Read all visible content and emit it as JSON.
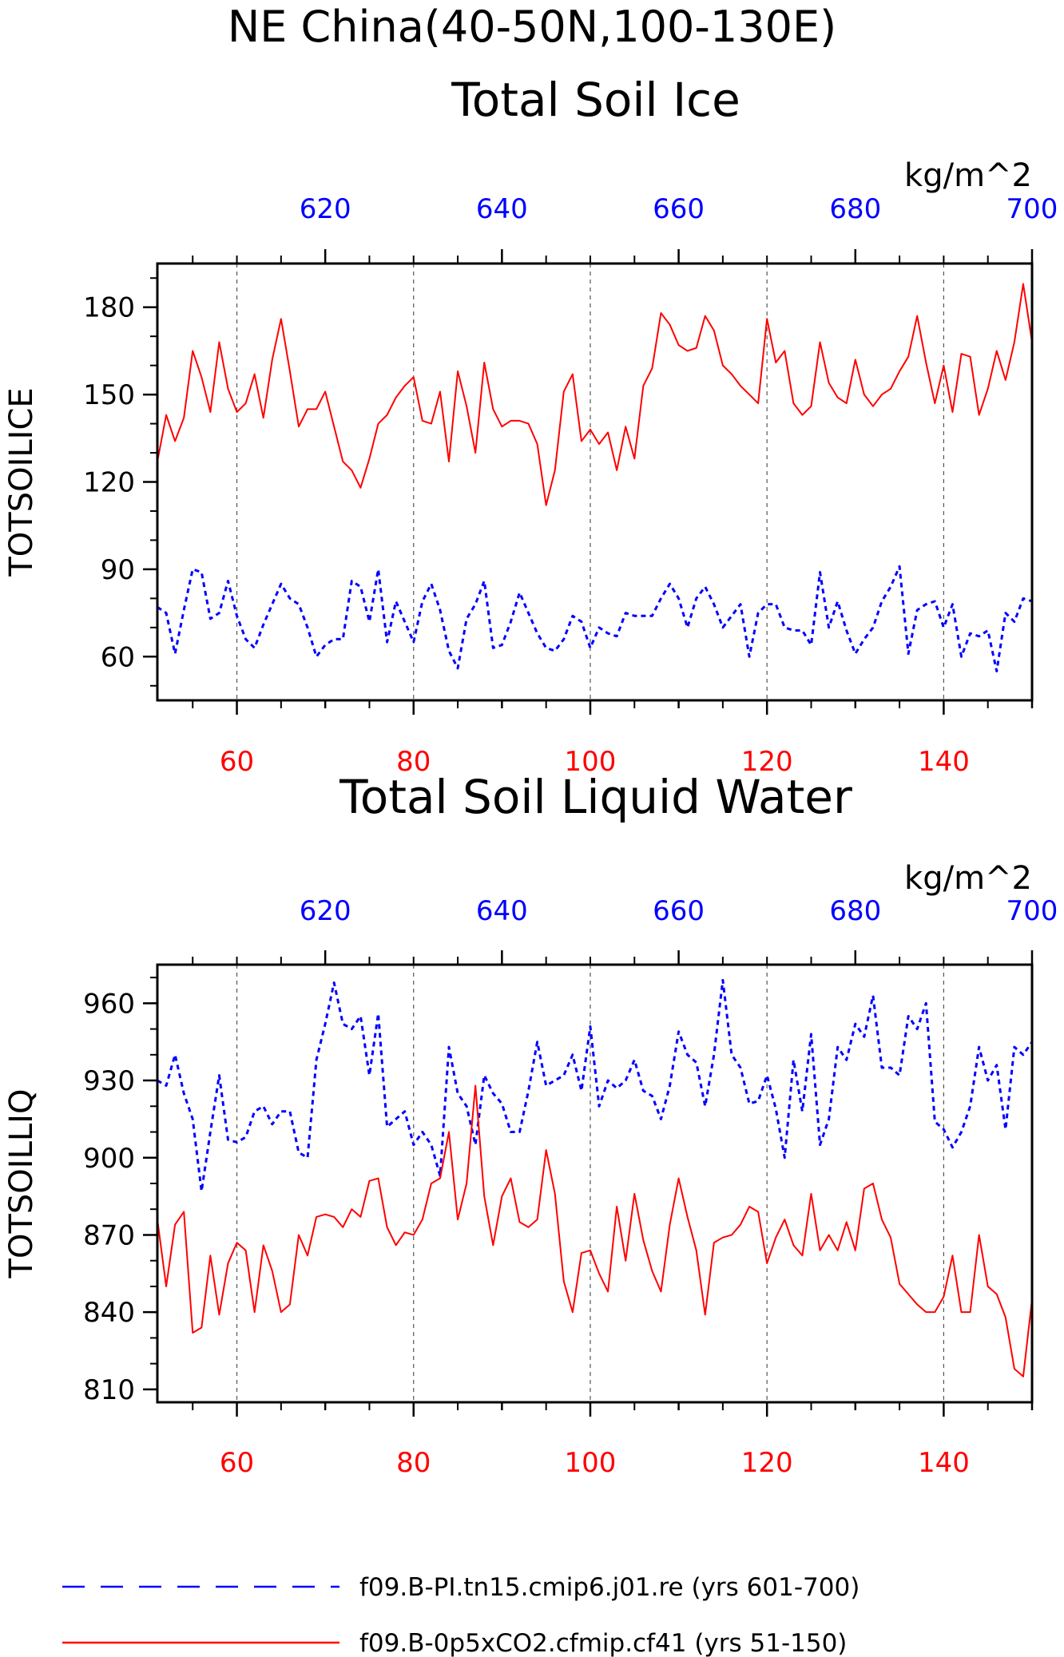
{
  "figure": {
    "title_line1": "NE China(40-50N,100-130E)",
    "legend": [
      {
        "label": "f09.B-PI.tn15.cmip6.j01.re (yrs 601-700)",
        "color": "#0000ff",
        "style": "dashed"
      },
      {
        "label": "f09.B-0p5xCO2.cfmip.cf41 (yrs 51-150)",
        "color": "#ff0000",
        "style": "solid"
      }
    ]
  },
  "chart_data": [
    {
      "type": "line",
      "title": "Total Soil Ice",
      "ylabel": "TOTSOILICE",
      "units": "kg/m^2",
      "ylim": [
        45,
        195
      ],
      "yticks": [
        60,
        90,
        120,
        150,
        180
      ],
      "bottom_axis": {
        "range": [
          51,
          150
        ],
        "ticks": [
          60,
          80,
          100,
          120,
          140
        ],
        "color": "#ff0000"
      },
      "top_axis": {
        "range": [
          601,
          700
        ],
        "ticks": [
          620,
          640,
          660,
          680,
          700
        ],
        "color": "#0000ff"
      },
      "grid": "vertical-dashed",
      "series": [
        {
          "axis": "top",
          "color": "#0000ff",
          "style": "dashed",
          "values": [
            77,
            75,
            61,
            76,
            90,
            89,
            73,
            75,
            86,
            74,
            66,
            63,
            71,
            78,
            85,
            80,
            78,
            70,
            60,
            64,
            66,
            66,
            86,
            84,
            72,
            90,
            65,
            79,
            72,
            65,
            79,
            85,
            76,
            62,
            56,
            73,
            78,
            86,
            63,
            64,
            72,
            82,
            75,
            68,
            63,
            62,
            66,
            74,
            72,
            63,
            70,
            68,
            67,
            75,
            74,
            74,
            74,
            80,
            85,
            80,
            70,
            80,
            84,
            78,
            70,
            74,
            78,
            60,
            75,
            78,
            78,
            70,
            69,
            69,
            64,
            89,
            70,
            79,
            69,
            61,
            66,
            70,
            79,
            84,
            91,
            61,
            76,
            78,
            79,
            70,
            78,
            60,
            68,
            67,
            69,
            55,
            75,
            72,
            80,
            79
          ]
        },
        {
          "axis": "bottom",
          "color": "#ff0000",
          "style": "solid",
          "values": [
            127,
            143,
            134,
            142,
            165,
            156,
            144,
            168,
            152,
            144,
            147,
            157,
            142,
            162,
            176,
            158,
            139,
            145,
            145,
            151,
            139,
            127,
            124,
            118,
            128,
            140,
            143,
            149,
            153,
            156,
            141,
            140,
            151,
            127,
            158,
            146,
            130,
            161,
            145,
            139,
            141,
            141,
            140,
            133,
            112,
            124,
            151,
            157,
            134,
            138,
            133,
            137,
            124,
            139,
            128,
            153,
            159,
            178,
            174,
            167,
            165,
            166,
            177,
            172,
            160,
            157,
            153,
            150,
            147,
            176,
            161,
            165,
            147,
            143,
            146,
            168,
            154,
            149,
            147,
            162,
            150,
            146,
            150,
            152,
            158,
            163,
            177,
            161,
            147,
            160,
            144,
            164,
            163,
            143,
            152,
            165,
            155,
            168,
            188,
            168
          ]
        }
      ]
    },
    {
      "type": "line",
      "title": "Total Soil Liquid Water",
      "ylabel": "TOTSOILLIQ",
      "units": "kg/m^2",
      "ylim": [
        805,
        975
      ],
      "yticks": [
        810,
        840,
        870,
        900,
        930,
        960
      ],
      "bottom_axis": {
        "range": [
          51,
          150
        ],
        "ticks": [
          60,
          80,
          100,
          120,
          140
        ],
        "color": "#ff0000"
      },
      "top_axis": {
        "range": [
          601,
          700
        ],
        "ticks": [
          620,
          640,
          660,
          680,
          700
        ],
        "color": "#0000ff"
      },
      "grid": "vertical-dashed",
      "series": [
        {
          "axis": "top",
          "color": "#0000ff",
          "style": "dashed",
          "values": [
            930,
            928,
            940,
            925,
            915,
            887,
            910,
            932,
            907,
            906,
            908,
            918,
            920,
            913,
            918,
            918,
            902,
            900,
            938,
            952,
            968,
            952,
            950,
            955,
            932,
            956,
            912,
            915,
            918,
            905,
            910,
            905,
            893,
            943,
            925,
            920,
            905,
            932,
            925,
            921,
            910,
            910,
            926,
            945,
            928,
            930,
            932,
            940,
            926,
            951,
            920,
            930,
            927,
            930,
            938,
            926,
            924,
            915,
            928,
            949,
            940,
            937,
            920,
            940,
            969,
            940,
            935,
            921,
            922,
            932,
            919,
            900,
            938,
            918,
            948,
            905,
            915,
            943,
            938,
            952,
            947,
            963,
            935,
            935,
            932,
            955,
            950,
            960,
            914,
            911,
            904,
            910,
            920,
            943,
            930,
            936,
            911,
            943,
            940,
            945
          ]
        },
        {
          "axis": "bottom",
          "color": "#ff0000",
          "style": "solid",
          "values": [
            876,
            850,
            874,
            879,
            832,
            834,
            862,
            839,
            859,
            867,
            864,
            840,
            866,
            856,
            840,
            843,
            870,
            862,
            877,
            878,
            877,
            873,
            880,
            877,
            891,
            892,
            873,
            866,
            871,
            870,
            876,
            890,
            892,
            910,
            876,
            890,
            928,
            885,
            866,
            885,
            892,
            875,
            873,
            876,
            903,
            886,
            852,
            840,
            863,
            864,
            855,
            848,
            881,
            860,
            886,
            868,
            856,
            848,
            874,
            892,
            877,
            864,
            839,
            867,
            869,
            870,
            874,
            881,
            879,
            859,
            869,
            876,
            866,
            862,
            886,
            864,
            870,
            864,
            875,
            864,
            888,
            890,
            876,
            869,
            851,
            847,
            843,
            840,
            840,
            846,
            862,
            840,
            840,
            870,
            850,
            847,
            838,
            818,
            815,
            845
          ]
        }
      ]
    }
  ]
}
